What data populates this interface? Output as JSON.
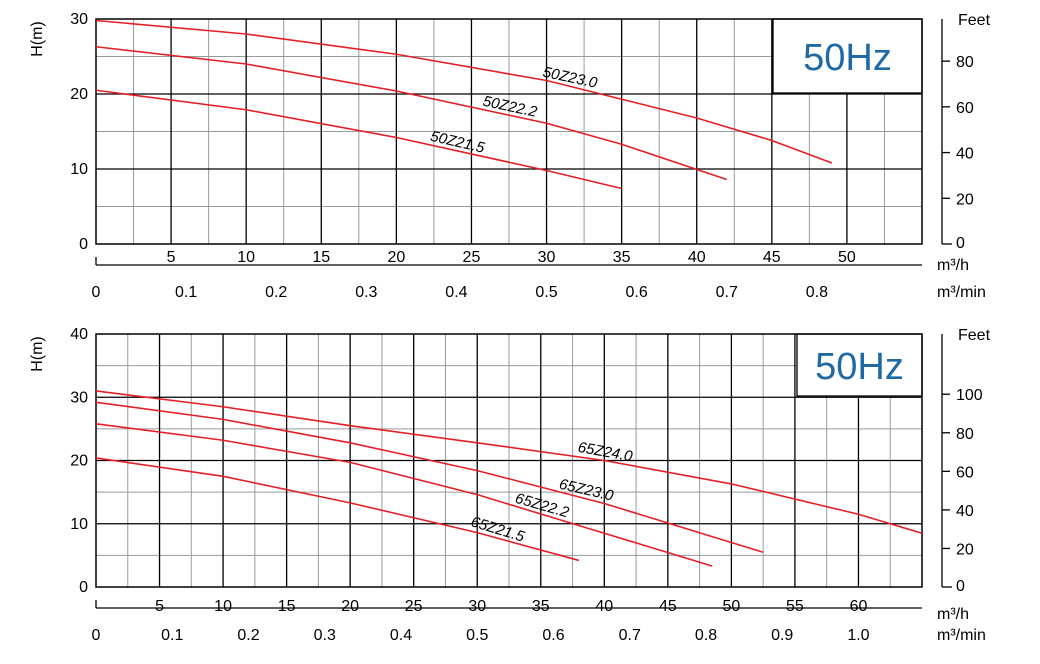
{
  "colors": {
    "curve": "#e41f26",
    "freq": "#1f6aa5",
    "grid": "#000000",
    "minor_grid": "#9a9a9a"
  },
  "chart_data": [
    {
      "type": "line",
      "title": "50Hz",
      "ylabel": "H(m)",
      "ylabel_right": "Feet",
      "xlabel": "m³/h",
      "xlabel2": "m³/min",
      "xlim": [
        0,
        55
      ],
      "ylim": [
        0,
        30
      ],
      "x_ticks": [
        5,
        10,
        15,
        20,
        25,
        30,
        35,
        40,
        45,
        50
      ],
      "y_ticks": [
        0,
        10,
        20,
        30
      ],
      "x2_ticks": [
        "0",
        "0.1",
        "0.2",
        "0.3",
        "0.4",
        "0.5",
        "0.6",
        "0.7",
        "0.8"
      ],
      "x2_values": [
        0,
        6,
        12,
        18,
        24,
        30,
        36,
        42,
        48
      ],
      "feet_ticks": [
        "0",
        "20",
        "40",
        "60",
        "80"
      ],
      "feet_values": [
        0,
        20,
        40,
        60,
        80
      ],
      "series": [
        {
          "name": "50Z23.0",
          "x": [
            0,
            10,
            20,
            30,
            40,
            45,
            49
          ],
          "y": [
            29.8,
            28,
            25.3,
            21.8,
            16.8,
            13.8,
            10.8
          ]
        },
        {
          "name": "50Z22.2",
          "x": [
            0,
            10,
            20,
            30,
            35,
            42
          ],
          "y": [
            26.3,
            24,
            20.4,
            16.1,
            13.3,
            8.6
          ]
        },
        {
          "name": "50Z21.5",
          "x": [
            0,
            10,
            20,
            30,
            35
          ],
          "y": [
            20.5,
            17.9,
            14.2,
            9.8,
            7.4
          ]
        }
      ]
    },
    {
      "type": "line",
      "title": "50Hz",
      "ylabel": "H(m)",
      "ylabel_right": "Feet",
      "xlabel": "m³/h",
      "xlabel2": "m³/min",
      "xlim": [
        0,
        65
      ],
      "ylim": [
        0,
        40
      ],
      "x_ticks": [
        5,
        10,
        15,
        20,
        25,
        30,
        35,
        40,
        45,
        50,
        55,
        60
      ],
      "y_ticks": [
        0,
        10,
        20,
        30,
        40
      ],
      "x2_ticks": [
        "0",
        "0.1",
        "0.2",
        "0.3",
        "0.4",
        "0.5",
        "0.6",
        "0.7",
        "0.8",
        "0.9",
        "1.0"
      ],
      "x2_values": [
        0,
        6,
        12,
        18,
        24,
        30,
        36,
        42,
        48,
        54,
        60
      ],
      "feet_ticks": [
        "0",
        "20",
        "40",
        "60",
        "80",
        "100"
      ],
      "feet_values": [
        0,
        20,
        40,
        60,
        80,
        100
      ],
      "series": [
        {
          "name": "65Z24.0",
          "x": [
            0,
            10,
            20,
            30,
            40,
            50,
            60,
            65
          ],
          "y": [
            31,
            28.5,
            25.5,
            22.8,
            20,
            16.3,
            11.5,
            8.5
          ]
        },
        {
          "name": "65Z23.0",
          "x": [
            0,
            10,
            20,
            30,
            40,
            52.5
          ],
          "y": [
            29.2,
            26.5,
            22.8,
            18.4,
            13.2,
            5.5
          ]
        },
        {
          "name": "65Z22.2",
          "x": [
            0,
            10,
            20,
            30,
            40,
            48.5
          ],
          "y": [
            25.8,
            23.2,
            19.7,
            14.6,
            8.5,
            3.3
          ]
        },
        {
          "name": "65Z21.5",
          "x": [
            0,
            10,
            20,
            30,
            38
          ],
          "y": [
            20.4,
            17.5,
            13.3,
            8.6,
            4.2
          ]
        }
      ]
    }
  ]
}
